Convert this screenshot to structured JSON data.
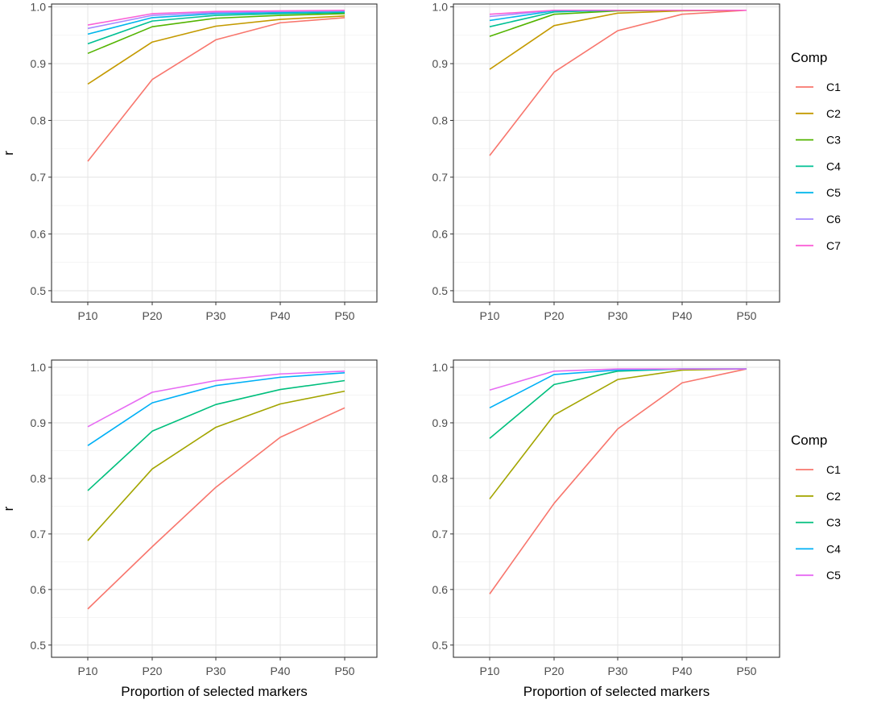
{
  "chart_data": [
    {
      "type": "line",
      "panel": "top-left",
      "categories": [
        "P10",
        "P20",
        "P30",
        "P40",
        "P50"
      ],
      "ylim": [
        0.48,
        1.005
      ],
      "yticks": [
        "0.5",
        "0.6",
        "0.7",
        "0.8",
        "0.9",
        "1.0"
      ],
      "ylabel": "r",
      "xlabel": "",
      "series": [
        {
          "name": "C1",
          "color": "#F8766D",
          "values": [
            0.728,
            0.872,
            0.942,
            0.972,
            0.981
          ]
        },
        {
          "name": "C2",
          "color": "#C49A00",
          "values": [
            0.864,
            0.938,
            0.966,
            0.978,
            0.984
          ]
        },
        {
          "name": "C3",
          "color": "#53B400",
          "values": [
            0.918,
            0.965,
            0.98,
            0.985,
            0.988
          ]
        },
        {
          "name": "C4",
          "color": "#00C094",
          "values": [
            0.935,
            0.975,
            0.985,
            0.988,
            0.99
          ]
        },
        {
          "name": "C5",
          "color": "#00B6EB",
          "values": [
            0.952,
            0.981,
            0.988,
            0.99,
            0.992
          ]
        },
        {
          "name": "C6",
          "color": "#A58AFF",
          "values": [
            0.962,
            0.985,
            0.99,
            0.992,
            0.993
          ]
        },
        {
          "name": "C7",
          "color": "#FB61D7",
          "values": [
            0.968,
            0.988,
            0.992,
            0.993,
            0.994
          ]
        }
      ]
    },
    {
      "type": "line",
      "panel": "top-right",
      "categories": [
        "P10",
        "P20",
        "P30",
        "P40",
        "P50"
      ],
      "ylim": [
        0.48,
        1.005
      ],
      "yticks": [
        "0.5",
        "0.6",
        "0.7",
        "0.8",
        "0.9",
        "1.0"
      ],
      "ylabel": "",
      "xlabel": "",
      "series": [
        {
          "name": "C1",
          "color": "#F8766D",
          "values": [
            0.738,
            0.885,
            0.958,
            0.987,
            0.994
          ]
        },
        {
          "name": "C2",
          "color": "#C49A00",
          "values": [
            0.89,
            0.967,
            0.989,
            0.993,
            0.994
          ]
        },
        {
          "name": "C3",
          "color": "#53B400",
          "values": [
            0.948,
            0.987,
            0.993,
            0.994,
            0.994
          ]
        },
        {
          "name": "C4",
          "color": "#00C094",
          "values": [
            0.965,
            0.991,
            0.994,
            0.994,
            0.994
          ]
        },
        {
          "name": "C5",
          "color": "#00B6EB",
          "values": [
            0.976,
            0.993,
            0.994,
            0.994,
            0.994
          ]
        },
        {
          "name": "C6",
          "color": "#A58AFF",
          "values": [
            0.983,
            0.994,
            0.994,
            0.994,
            0.994
          ]
        },
        {
          "name": "C7",
          "color": "#FB61D7",
          "values": [
            0.987,
            0.994,
            0.994,
            0.994,
            0.994
          ]
        }
      ]
    },
    {
      "type": "line",
      "panel": "bottom-left",
      "categories": [
        "P10",
        "P20",
        "P30",
        "P40",
        "P50"
      ],
      "ylim": [
        0.478,
        1.013
      ],
      "yticks": [
        "0.5",
        "0.6",
        "0.7",
        "0.8",
        "0.9",
        "1.0"
      ],
      "ylabel": "r",
      "xlabel": "Proportion of selected markers",
      "series": [
        {
          "name": "C1",
          "color": "#F8766D",
          "values": [
            0.565,
            0.677,
            0.784,
            0.874,
            0.927
          ]
        },
        {
          "name": "C2",
          "color": "#A3A500",
          "values": [
            0.688,
            0.817,
            0.892,
            0.934,
            0.957
          ]
        },
        {
          "name": "C3",
          "color": "#00BF7D",
          "values": [
            0.778,
            0.885,
            0.933,
            0.96,
            0.976
          ]
        },
        {
          "name": "C4",
          "color": "#00B0F6",
          "values": [
            0.859,
            0.936,
            0.967,
            0.982,
            0.99
          ]
        },
        {
          "name": "C5",
          "color": "#E76BF3",
          "values": [
            0.893,
            0.955,
            0.976,
            0.988,
            0.993
          ]
        }
      ]
    },
    {
      "type": "line",
      "panel": "bottom-right",
      "categories": [
        "P10",
        "P20",
        "P30",
        "P40",
        "P50"
      ],
      "ylim": [
        0.478,
        1.013
      ],
      "yticks": [
        "0.5",
        "0.6",
        "0.7",
        "0.8",
        "0.9",
        "1.0"
      ],
      "ylabel": "",
      "xlabel": "Proportion of selected markers",
      "series": [
        {
          "name": "C1",
          "color": "#F8766D",
          "values": [
            0.592,
            0.755,
            0.889,
            0.972,
            0.997
          ]
        },
        {
          "name": "C2",
          "color": "#A3A500",
          "values": [
            0.763,
            0.914,
            0.978,
            0.995,
            0.997
          ]
        },
        {
          "name": "C3",
          "color": "#00BF7D",
          "values": [
            0.872,
            0.969,
            0.993,
            0.997,
            0.997
          ]
        },
        {
          "name": "C4",
          "color": "#00B0F6",
          "values": [
            0.927,
            0.987,
            0.995,
            0.997,
            0.997
          ]
        },
        {
          "name": "C5",
          "color": "#E76BF3",
          "values": [
            0.959,
            0.993,
            0.997,
            0.997,
            0.997
          ]
        }
      ]
    }
  ],
  "legends": [
    {
      "title": "Comp",
      "entries": [
        {
          "label": "C1",
          "color": "#F8766D"
        },
        {
          "label": "C2",
          "color": "#C49A00"
        },
        {
          "label": "C3",
          "color": "#53B400"
        },
        {
          "label": "C4",
          "color": "#00C094"
        },
        {
          "label": "C5",
          "color": "#00B6EB"
        },
        {
          "label": "C6",
          "color": "#A58AFF"
        },
        {
          "label": "C7",
          "color": "#FB61D7"
        }
      ]
    },
    {
      "title": "Comp",
      "entries": [
        {
          "label": "C1",
          "color": "#F8766D"
        },
        {
          "label": "C2",
          "color": "#A3A500"
        },
        {
          "label": "C3",
          "color": "#00BF7D"
        },
        {
          "label": "C4",
          "color": "#00B0F6"
        },
        {
          "label": "C5",
          "color": "#E76BF3"
        }
      ]
    }
  ]
}
